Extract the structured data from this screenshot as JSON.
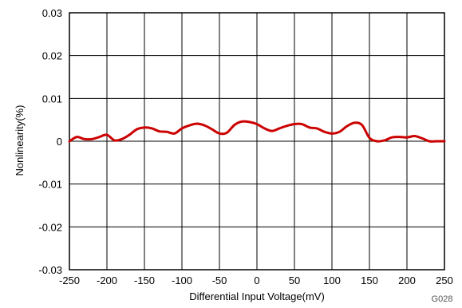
{
  "chart_data": {
    "type": "line",
    "xlabel": "Differential Input Voltage(mV)",
    "ylabel": "Nonlinearity(%)",
    "figure_id": "G028",
    "xlim": [
      -250,
      250
    ],
    "ylim": [
      -0.03,
      0.03
    ],
    "x_ticks": [
      -250,
      -200,
      -150,
      -100,
      -50,
      0,
      50,
      100,
      150,
      200,
      250
    ],
    "x_tick_labels": [
      "-250",
      "-200",
      "-150",
      "-100",
      "-50",
      "0",
      "50",
      "100",
      "150",
      "200",
      "250"
    ],
    "y_ticks": [
      0.03,
      0.02,
      0.01,
      0,
      -0.01,
      -0.02,
      -0.03
    ],
    "y_tick_labels": [
      "0.03",
      "0.02",
      "0.01",
      "0",
      "-0.01",
      "-0.02",
      "-0.03"
    ],
    "grid": true,
    "series": [
      {
        "color": "#cc0000",
        "x": [
          -250,
          -240,
          -230,
          -220,
          -210,
          -200,
          -190,
          -180,
          -170,
          -160,
          -150,
          -140,
          -130,
          -120,
          -110,
          -100,
          -90,
          -80,
          -70,
          -60,
          -50,
          -40,
          -30,
          -20,
          -10,
          0,
          10,
          20,
          30,
          40,
          50,
          60,
          70,
          80,
          90,
          100,
          110,
          120,
          130,
          140,
          150,
          160,
          170,
          180,
          190,
          200,
          210,
          220,
          230,
          240,
          250
        ],
        "y": [
          0.0,
          0.001,
          0.0005,
          0.0005,
          0.001,
          0.0015,
          0.0002,
          0.0005,
          0.0015,
          0.0028,
          0.0032,
          0.003,
          0.0023,
          0.0022,
          0.0018,
          0.003,
          0.0037,
          0.0041,
          0.0037,
          0.0028,
          0.0018,
          0.002,
          0.0038,
          0.0046,
          0.0045,
          0.004,
          0.003,
          0.0024,
          0.003,
          0.0036,
          0.004,
          0.004,
          0.0032,
          0.003,
          0.0022,
          0.0018,
          0.0022,
          0.0035,
          0.0043,
          0.0038,
          0.0008,
          0.0,
          0.0002,
          0.0009,
          0.001,
          0.0009,
          0.0012,
          0.0007,
          0.0,
          0.0,
          0.0
        ]
      }
    ]
  }
}
